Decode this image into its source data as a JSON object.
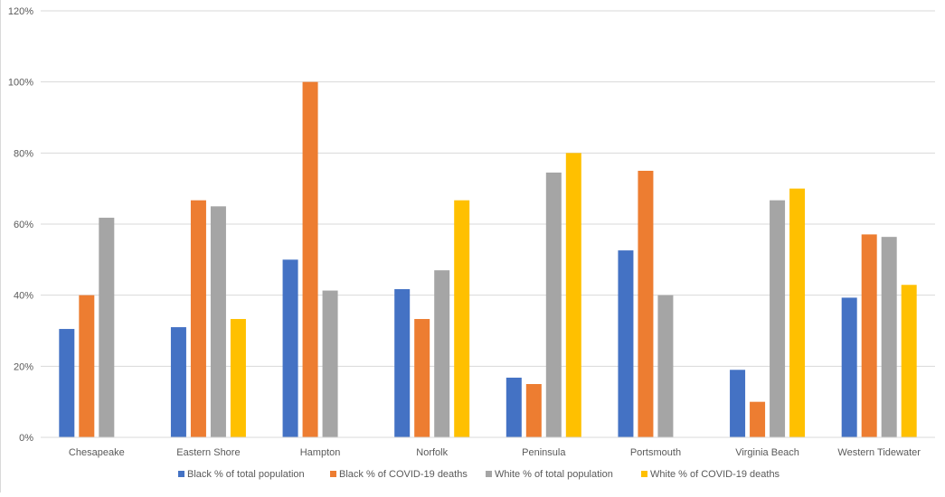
{
  "chart_data": {
    "type": "bar",
    "title": "",
    "xlabel": "",
    "ylabel": "",
    "ylim": [
      0,
      120
    ],
    "yticks": [
      "0%",
      "20%",
      "40%",
      "60%",
      "80%",
      "100%",
      "120%"
    ],
    "ytick_values": [
      0,
      20,
      40,
      60,
      80,
      100,
      120
    ],
    "grid": true,
    "legend_position": "bottom",
    "categories": [
      "Chesapeake",
      "Eastern Shore",
      "Hampton",
      "Norfolk",
      "Peninsula",
      "Portsmouth",
      "Virginia Beach",
      "Western Tidewater"
    ],
    "series": [
      {
        "name": "Black % of total population",
        "color": "#4472c4",
        "values": [
          30.5,
          31,
          50,
          41.7,
          16.8,
          52.6,
          19,
          39.3
        ]
      },
      {
        "name": "Black % of COVID-19 deaths",
        "color": "#ed7d31",
        "values": [
          40,
          66.7,
          100,
          33.3,
          15,
          75,
          10,
          57.1
        ]
      },
      {
        "name": "White % of total population",
        "color": "#a5a5a5",
        "values": [
          61.8,
          65,
          41.3,
          47,
          74.5,
          40,
          66.7,
          56.4
        ]
      },
      {
        "name": "White % of COVID-19 deaths",
        "color": "#ffc000",
        "values": [
          0,
          33.3,
          0,
          66.7,
          80,
          0,
          70,
          42.9
        ]
      }
    ]
  }
}
